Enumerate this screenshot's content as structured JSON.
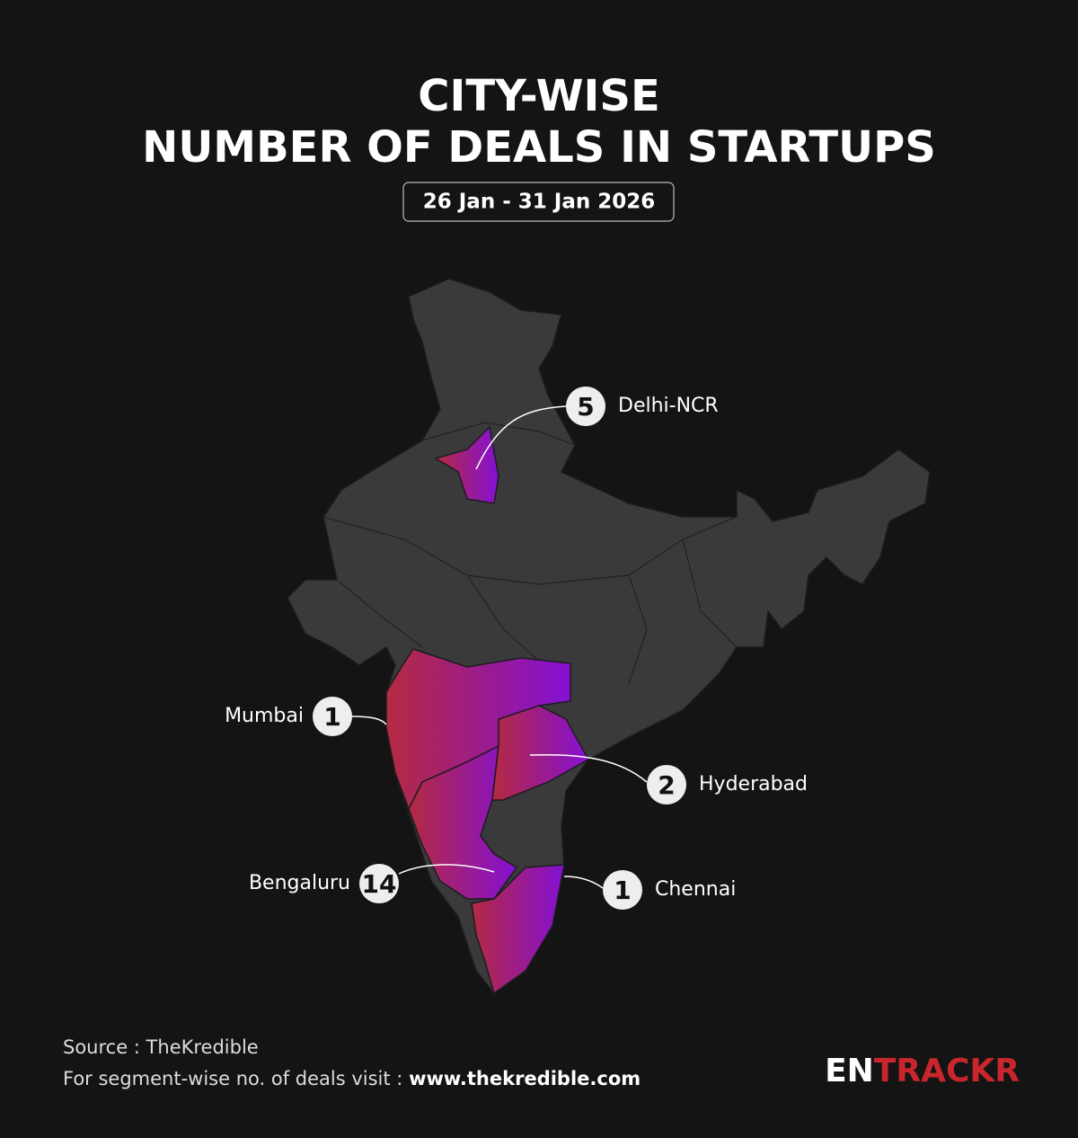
{
  "header": {
    "title_lines": [
      "CITY-WISE",
      "NUMBER OF DEALS IN STARTUPS"
    ],
    "date_range": "26 Jan - 31 Jan 2026"
  },
  "cities": [
    {
      "name": "Delhi-NCR",
      "deals": 5
    },
    {
      "name": "Mumbai",
      "deals": 1
    },
    {
      "name": "Hyderabad",
      "deals": 2
    },
    {
      "name": "Bengaluru",
      "deals": 14
    },
    {
      "name": "Chennai",
      "deals": 1
    }
  ],
  "footer": {
    "source": "Source : TheKredible",
    "visit_text": "For segment-wise no. of deals visit :",
    "url": "www.thekredible.com"
  },
  "logo": {
    "parts": [
      "EN",
      "TRACKR"
    ]
  }
}
